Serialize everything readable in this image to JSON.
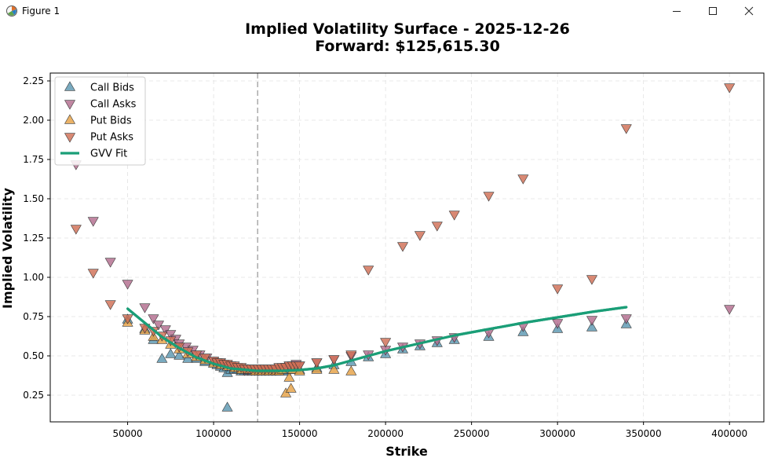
{
  "window": {
    "title": "Figure 1",
    "icons": [
      "matplotlib-figure-icon",
      "minimize-icon",
      "maximize-icon",
      "close-icon"
    ]
  },
  "chart_data": {
    "type": "scatter",
    "title": "Implied Volatility Surface - 2025-12-26",
    "subtitle": "Forward: $125,615.30",
    "xlabel": "Strike",
    "ylabel": "Implied Volatility",
    "xlim": [
      5000,
      420000
    ],
    "ylim": [
      0.08,
      2.3
    ],
    "xticks": [
      50000,
      100000,
      150000,
      200000,
      250000,
      300000,
      350000,
      400000
    ],
    "yticks": [
      0.25,
      0.5,
      0.75,
      1.0,
      1.25,
      1.5,
      1.75,
      2.0,
      2.25
    ],
    "xtick_labels": [
      "50000",
      "100000",
      "150000",
      "200000",
      "250000",
      "300000",
      "350000",
      "400000"
    ],
    "ytick_labels": [
      "0.25",
      "0.50",
      "0.75",
      "1.00",
      "1.25",
      "1.50",
      "1.75",
      "2.00",
      "2.25"
    ],
    "grid": true,
    "forward_line": 125615.3,
    "legend_position": "top-left",
    "series": [
      {
        "name": "Call Bids",
        "marker": "triangle-up",
        "color": "#5b97b1",
        "points": [
          [
            50000,
            0.73
          ],
          [
            60000,
            0.67
          ],
          [
            65000,
            0.6
          ],
          [
            70000,
            0.48
          ],
          [
            75000,
            0.51
          ],
          [
            80000,
            0.5
          ],
          [
            85000,
            0.48
          ],
          [
            90000,
            0.48
          ],
          [
            95000,
            0.46
          ],
          [
            100000,
            0.45
          ],
          [
            102000,
            0.44
          ],
          [
            104000,
            0.43
          ],
          [
            106000,
            0.42
          ],
          [
            108000,
            0.39
          ],
          [
            108000,
            0.17
          ],
          [
            110000,
            0.41
          ],
          [
            112000,
            0.41
          ],
          [
            114000,
            0.41
          ],
          [
            116000,
            0.4
          ],
          [
            118000,
            0.4
          ],
          [
            120000,
            0.4
          ],
          [
            122000,
            0.4
          ],
          [
            124000,
            0.4
          ],
          [
            126000,
            0.4
          ],
          [
            128000,
            0.4
          ],
          [
            130000,
            0.4
          ],
          [
            132000,
            0.4
          ],
          [
            134000,
            0.4
          ],
          [
            136000,
            0.4
          ],
          [
            138000,
            0.4
          ],
          [
            140000,
            0.4
          ],
          [
            142000,
            0.4
          ],
          [
            144000,
            0.41
          ],
          [
            146000,
            0.41
          ],
          [
            148000,
            0.41
          ],
          [
            150000,
            0.41
          ],
          [
            160000,
            0.42
          ],
          [
            170000,
            0.44
          ],
          [
            180000,
            0.46
          ],
          [
            190000,
            0.49
          ],
          [
            200000,
            0.51
          ],
          [
            210000,
            0.54
          ],
          [
            220000,
            0.56
          ],
          [
            230000,
            0.58
          ],
          [
            240000,
            0.6
          ],
          [
            260000,
            0.62
          ],
          [
            280000,
            0.65
          ],
          [
            300000,
            0.67
          ],
          [
            320000,
            0.68
          ],
          [
            340000,
            0.7
          ]
        ]
      },
      {
        "name": "Call Asks",
        "marker": "triangle-down",
        "color": "#b26d8e",
        "points": [
          [
            20000,
            1.72
          ],
          [
            30000,
            1.36
          ],
          [
            40000,
            1.1
          ],
          [
            50000,
            0.96
          ],
          [
            60000,
            0.81
          ],
          [
            65000,
            0.74
          ],
          [
            68000,
            0.7
          ],
          [
            72000,
            0.67
          ],
          [
            75000,
            0.64
          ],
          [
            78000,
            0.61
          ],
          [
            80000,
            0.58
          ],
          [
            84000,
            0.56
          ],
          [
            88000,
            0.54
          ],
          [
            92000,
            0.51
          ],
          [
            96000,
            0.49
          ],
          [
            100000,
            0.47
          ],
          [
            102000,
            0.46
          ],
          [
            104000,
            0.46
          ],
          [
            106000,
            0.45
          ],
          [
            108000,
            0.44
          ],
          [
            110000,
            0.44
          ],
          [
            112000,
            0.43
          ],
          [
            114000,
            0.42
          ],
          [
            116000,
            0.42
          ],
          [
            118000,
            0.41
          ],
          [
            120000,
            0.41
          ],
          [
            122000,
            0.41
          ],
          [
            124000,
            0.41
          ],
          [
            126000,
            0.41
          ],
          [
            128000,
            0.41
          ],
          [
            130000,
            0.41
          ],
          [
            132000,
            0.41
          ],
          [
            134000,
            0.41
          ],
          [
            136000,
            0.41
          ],
          [
            138000,
            0.42
          ],
          [
            140000,
            0.42
          ],
          [
            142000,
            0.43
          ],
          [
            144000,
            0.44
          ],
          [
            146000,
            0.44
          ],
          [
            148000,
            0.45
          ],
          [
            150000,
            0.44
          ],
          [
            160000,
            0.46
          ],
          [
            170000,
            0.48
          ],
          [
            180000,
            0.5
          ],
          [
            190000,
            0.51
          ],
          [
            200000,
            0.54
          ],
          [
            210000,
            0.56
          ],
          [
            220000,
            0.58
          ],
          [
            230000,
            0.6
          ],
          [
            240000,
            0.62
          ],
          [
            260000,
            0.65
          ],
          [
            280000,
            0.69
          ],
          [
            300000,
            0.71
          ],
          [
            320000,
            0.73
          ],
          [
            340000,
            0.74
          ],
          [
            400000,
            0.8
          ]
        ]
      },
      {
        "name": "Put Bids",
        "marker": "triangle-up",
        "color": "#e5a146",
        "points": [
          [
            50000,
            0.71
          ],
          [
            60000,
            0.66
          ],
          [
            65000,
            0.62
          ],
          [
            70000,
            0.6
          ],
          [
            75000,
            0.57
          ],
          [
            80000,
            0.54
          ],
          [
            85000,
            0.51
          ],
          [
            90000,
            0.49
          ],
          [
            95000,
            0.47
          ],
          [
            100000,
            0.45
          ],
          [
            104000,
            0.44
          ],
          [
            108000,
            0.43
          ],
          [
            112000,
            0.42
          ],
          [
            116000,
            0.41
          ],
          [
            120000,
            0.41
          ],
          [
            124000,
            0.4
          ],
          [
            128000,
            0.4
          ],
          [
            132000,
            0.4
          ],
          [
            136000,
            0.4
          ],
          [
            138000,
            0.4
          ],
          [
            140000,
            0.41
          ],
          [
            142000,
            0.26
          ],
          [
            144000,
            0.36
          ],
          [
            145000,
            0.29
          ],
          [
            146000,
            0.41
          ],
          [
            150000,
            0.4
          ],
          [
            160000,
            0.41
          ],
          [
            170000,
            0.41
          ],
          [
            180000,
            0.4
          ]
        ]
      },
      {
        "name": "Put Asks",
        "marker": "triangle-down",
        "color": "#cf6f55",
        "points": [
          [
            20000,
            1.31
          ],
          [
            30000,
            1.03
          ],
          [
            40000,
            0.83
          ],
          [
            50000,
            0.74
          ],
          [
            60000,
            0.68
          ],
          [
            65000,
            0.66
          ],
          [
            70000,
            0.63
          ],
          [
            75000,
            0.6
          ],
          [
            80000,
            0.56
          ],
          [
            85000,
            0.53
          ],
          [
            90000,
            0.51
          ],
          [
            95000,
            0.49
          ],
          [
            100000,
            0.47
          ],
          [
            102000,
            0.46
          ],
          [
            104000,
            0.46
          ],
          [
            106000,
            0.45
          ],
          [
            108000,
            0.45
          ],
          [
            110000,
            0.44
          ],
          [
            112000,
            0.44
          ],
          [
            114000,
            0.43
          ],
          [
            116000,
            0.43
          ],
          [
            118000,
            0.42
          ],
          [
            120000,
            0.42
          ],
          [
            122000,
            0.42
          ],
          [
            124000,
            0.42
          ],
          [
            126000,
            0.42
          ],
          [
            128000,
            0.42
          ],
          [
            130000,
            0.42
          ],
          [
            132000,
            0.42
          ],
          [
            134000,
            0.42
          ],
          [
            136000,
            0.42
          ],
          [
            138000,
            0.43
          ],
          [
            140000,
            0.43
          ],
          [
            142000,
            0.43
          ],
          [
            144000,
            0.44
          ],
          [
            146000,
            0.44
          ],
          [
            148000,
            0.44
          ],
          [
            150000,
            0.44
          ],
          [
            160000,
            0.46
          ],
          [
            170000,
            0.48
          ],
          [
            180000,
            0.51
          ],
          [
            190000,
            1.05
          ],
          [
            200000,
            0.59
          ],
          [
            210000,
            1.2
          ],
          [
            220000,
            1.27
          ],
          [
            230000,
            1.33
          ],
          [
            240000,
            1.4
          ],
          [
            260000,
            1.52
          ],
          [
            280000,
            1.63
          ],
          [
            300000,
            0.93
          ],
          [
            320000,
            0.99
          ],
          [
            340000,
            1.95
          ],
          [
            400000,
            2.21
          ]
        ]
      },
      {
        "name": "GVV Fit",
        "marker": "line",
        "color": "#1a9e77",
        "points": [
          [
            50000,
            0.8
          ],
          [
            60000,
            0.71
          ],
          [
            70000,
            0.62
          ],
          [
            80000,
            0.55
          ],
          [
            90000,
            0.49
          ],
          [
            100000,
            0.45
          ],
          [
            110000,
            0.42
          ],
          [
            120000,
            0.41
          ],
          [
            125000,
            0.405
          ],
          [
            130000,
            0.405
          ],
          [
            140000,
            0.405
          ],
          [
            150000,
            0.41
          ],
          [
            160000,
            0.42
          ],
          [
            170000,
            0.44
          ],
          [
            180000,
            0.47
          ],
          [
            190000,
            0.5
          ],
          [
            200000,
            0.53
          ],
          [
            220000,
            0.58
          ],
          [
            240000,
            0.63
          ],
          [
            260000,
            0.67
          ],
          [
            280000,
            0.71
          ],
          [
            300000,
            0.745
          ],
          [
            320000,
            0.78
          ],
          [
            340000,
            0.81
          ]
        ]
      }
    ]
  }
}
